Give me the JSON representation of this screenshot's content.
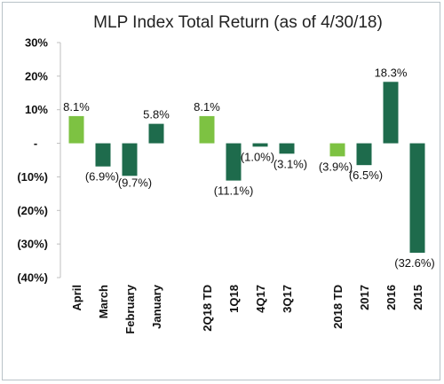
{
  "chart_data": {
    "type": "bar",
    "title": "MLP Index Total Return (as of 4/30/18)",
    "xlabel": "",
    "ylabel": "",
    "ylim": [
      -40,
      30
    ],
    "y_ticks": [
      {
        "value": 30,
        "label": "30%"
      },
      {
        "value": 20,
        "label": "20%"
      },
      {
        "value": 10,
        "label": "10%"
      },
      {
        "value": 0,
        "label": "-"
      },
      {
        "value": -10,
        "label": "(10%)"
      },
      {
        "value": -20,
        "label": "(20%)"
      },
      {
        "value": -30,
        "label": "(30%)"
      },
      {
        "value": -40,
        "label": "(40%)"
      }
    ],
    "grid": false,
    "legend": "none",
    "colors": {
      "highlight": "#7dc242",
      "base": "#1e6b4c"
    },
    "groups": [
      {
        "bars": [
          {
            "category": "April",
            "value": 8.1,
            "label": "8.1%",
            "highlight": true
          },
          {
            "category": "March",
            "value": -6.9,
            "label": "(6.9%)",
            "highlight": false
          },
          {
            "category": "February",
            "value": -9.7,
            "label": "(9.7%)",
            "highlight": false
          },
          {
            "category": "January",
            "value": 5.8,
            "label": "5.8%",
            "highlight": false
          }
        ]
      },
      {
        "bars": [
          {
            "category": "2Q18 TD",
            "value": 8.1,
            "label": "8.1%",
            "highlight": true
          },
          {
            "category": "1Q18",
            "value": -11.1,
            "label": "(11.1%)",
            "highlight": false
          },
          {
            "category": "4Q17",
            "value": -1.0,
            "label": "(1.0%)",
            "highlight": false
          },
          {
            "category": "3Q17",
            "value": -3.1,
            "label": "(3.1%)",
            "highlight": false
          }
        ]
      },
      {
        "bars": [
          {
            "category": "2018 TD",
            "value": -3.9,
            "label": "(3.9%)",
            "highlight": true
          },
          {
            "category": "2017",
            "value": -6.5,
            "label": "(6.5%)",
            "highlight": false
          },
          {
            "category": "2016",
            "value": 18.3,
            "label": "18.3%",
            "highlight": false
          },
          {
            "category": "2015",
            "value": -32.6,
            "label": "(32.6%)",
            "highlight": false
          }
        ]
      }
    ]
  }
}
